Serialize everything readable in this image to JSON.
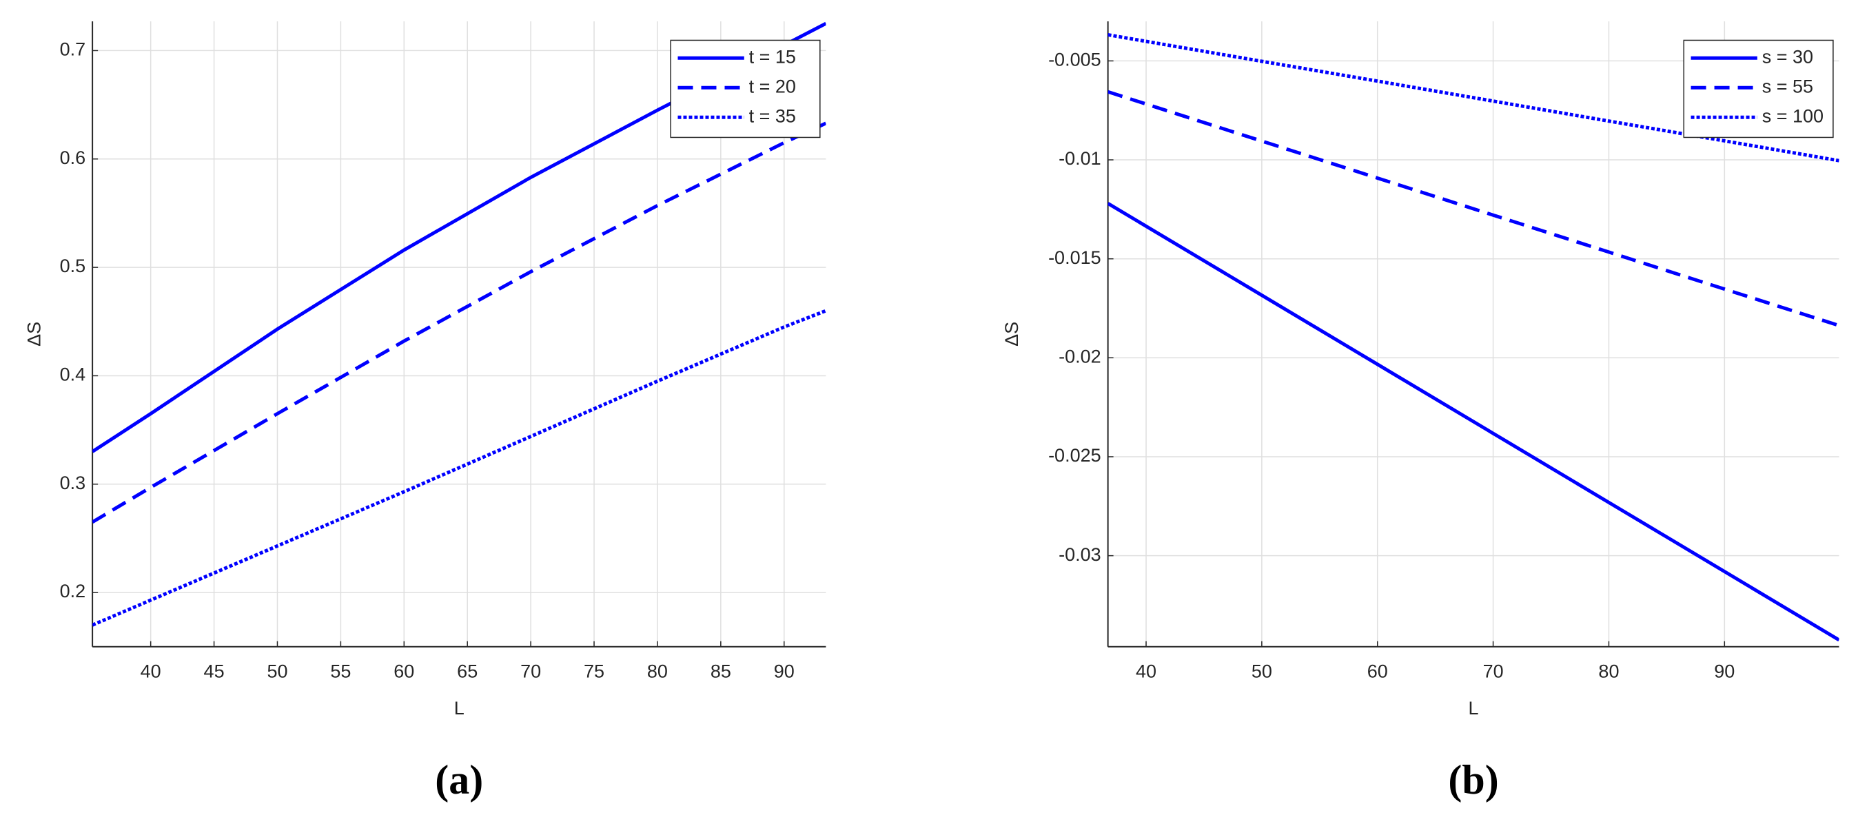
{
  "chart_data": [
    {
      "type": "line",
      "caption": "(a)",
      "x_label": "L",
      "y_label": "ΔS",
      "x": [
        35.4,
        40,
        50,
        60,
        70,
        80,
        90,
        93.3
      ],
      "series": [
        {
          "name": "t = 15",
          "color": "#0000ff",
          "style": "solid",
          "values": [
            0.33,
            0.365,
            0.443,
            0.516,
            0.583,
            0.645,
            0.705,
            0.725
          ]
        },
        {
          "name": "t = 20",
          "color": "#0000ff",
          "style": "dashed",
          "values": [
            0.265,
            0.297,
            0.365,
            0.432,
            0.496,
            0.557,
            0.615,
            0.633
          ]
        },
        {
          "name": "t = 35",
          "color": "#0000ff",
          "style": "dotted",
          "values": [
            0.17,
            0.193,
            0.243,
            0.293,
            0.344,
            0.395,
            0.445,
            0.46
          ]
        }
      ],
      "xlim": [
        35.4,
        93.3
      ],
      "xticks": [
        40,
        45,
        50,
        55,
        60,
        65,
        70,
        75,
        80,
        85,
        90
      ],
      "ylim": [
        0.15,
        0.727
      ],
      "yticks": [
        0.2,
        0.3,
        0.4,
        0.5,
        0.6,
        0.7
      ],
      "grid": true,
      "legend": "upper right"
    },
    {
      "type": "line",
      "caption": "(b)",
      "x_label": "L",
      "y_label": "ΔS",
      "x": [
        36.7,
        50,
        60,
        70,
        80,
        90,
        99.9
      ],
      "series": [
        {
          "name": "s = 30",
          "color": "#0000ff",
          "style": "solid",
          "values": [
            -0.0122,
            -0.01684,
            -0.02033,
            -0.02382,
            -0.02731,
            -0.0308,
            -0.03426
          ]
        },
        {
          "name": "s = 55",
          "color": "#0000ff",
          "style": "dashed",
          "values": [
            -0.00656,
            -0.00905,
            -0.01092,
            -0.01279,
            -0.01466,
            -0.01653,
            -0.01837
          ]
        },
        {
          "name": "s = 100",
          "color": "#0000ff",
          "style": "dotted",
          "values": [
            -0.00368,
            -0.00502,
            -0.00602,
            -0.00703,
            -0.00804,
            -0.00904,
            -0.01004
          ]
        }
      ],
      "xlim": [
        36.7,
        99.9
      ],
      "xticks": [
        40,
        50,
        60,
        70,
        80,
        90
      ],
      "ylim": [
        -0.0346,
        -0.003
      ],
      "yticks": [
        -0.03,
        -0.025,
        -0.02,
        -0.015,
        -0.01,
        -0.005
      ],
      "grid": true,
      "legend": "upper right"
    }
  ]
}
